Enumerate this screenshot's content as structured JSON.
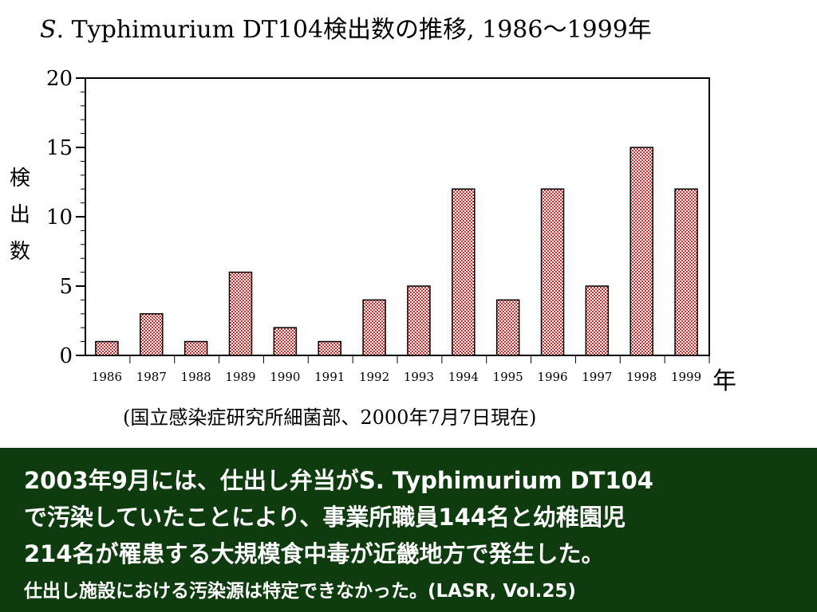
{
  "chart_data": {
    "type": "bar",
    "title_italic": "S",
    "title_rest": ". Typhimurium DT104検出数の推移, 1986～1999年",
    "ylabel": "検出数",
    "xlabel": "年",
    "source": "(国立感染症研究所細菌部、2000年7月7日現在)",
    "categories": [
      "1986",
      "1987",
      "1988",
      "1989",
      "1990",
      "1991",
      "1992",
      "1993",
      "1994",
      "1995",
      "1996",
      "1997",
      "1998",
      "1999"
    ],
    "values": [
      1,
      3,
      1,
      6,
      2,
      1,
      4,
      5,
      12,
      4,
      12,
      5,
      15,
      12
    ],
    "ylim": [
      0,
      20
    ],
    "yticks": [
      "0",
      "5",
      "10",
      "15",
      "20"
    ],
    "bar_color": "#cc2a2a",
    "grid": false
  },
  "footer": {
    "line1": "2003年9月には、仕出し弁当がS. Typhimurium DT104",
    "line2": "で汚染していたことにより、事業所職員144名と幼稚園児",
    "line3": "214名が罹患する大規模食中毒が近畿地方で発生した。",
    "line4": "仕出し施設における汚染源は特定できなかった。(LASR, Vol.25)",
    "bg_color": "#0f3c0f"
  }
}
